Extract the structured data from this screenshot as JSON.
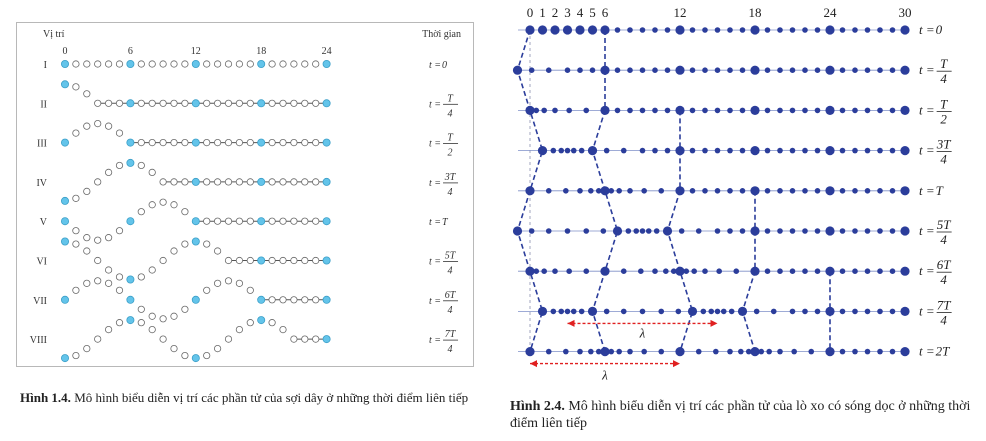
{
  "figure1": {
    "header_left": "Vị trí",
    "header_right": "Thời gian",
    "positions": [
      "0",
      "6",
      "12",
      "18",
      "24"
    ],
    "colors": {
      "particle_highlight": "#63c4ea",
      "particle_open": "#ffffff",
      "line": "#555555"
    },
    "rows": [
      {
        "roman": "I",
        "time": {
          "prefix": "t = ",
          "plain": "0"
        }
      },
      {
        "roman": "II",
        "time": {
          "prefix": "t = ",
          "num": "T",
          "den": "4"
        }
      },
      {
        "roman": "III",
        "time": {
          "prefix": "t = ",
          "num": "T",
          "den": "2"
        }
      },
      {
        "roman": "IV",
        "time": {
          "prefix": "t = ",
          "num": "3T",
          "den": "4"
        }
      },
      {
        "roman": "V",
        "time": {
          "prefix": "t = ",
          "plain": "T"
        }
      },
      {
        "roman": "VI",
        "time": {
          "prefix": "t = ",
          "num": "5T",
          "den": "4"
        }
      },
      {
        "roman": "VII",
        "time": {
          "prefix": "t = ",
          "num": "6T",
          "den": "4"
        }
      },
      {
        "roman": "VIII",
        "time": {
          "prefix": "t = ",
          "num": "7T",
          "den": "4"
        }
      }
    ],
    "caption_bold": "Hình 1.4.",
    "caption_text": " Mô hình biểu diễn vị trí các phần tử của sợi dây ở những thời điểm liên tiếp"
  },
  "figure2": {
    "top_labels": [
      "0",
      "1",
      "2",
      "3",
      "4",
      "5",
      "6",
      "12",
      "18",
      "24",
      "30"
    ],
    "colors": {
      "particle": "#2b3d9b",
      "line": "#7f8fc8",
      "wave": "#2b3d9b",
      "lambda_arrow": "#e02020"
    },
    "rows": [
      {
        "time": {
          "prefix": "t = ",
          "plain": "0"
        }
      },
      {
        "time": {
          "prefix": "t = ",
          "num": "T",
          "den": "4"
        }
      },
      {
        "time": {
          "prefix": "t = ",
          "num": "T",
          "den": "2"
        }
      },
      {
        "time": {
          "prefix": "t = ",
          "num": "3T",
          "den": "4"
        }
      },
      {
        "time": {
          "prefix": "t = ",
          "plain": "T"
        }
      },
      {
        "time": {
          "prefix": "t = ",
          "num": "5T",
          "den": "4"
        }
      },
      {
        "time": {
          "prefix": "t = ",
          "num": "6T",
          "den": "4"
        }
      },
      {
        "time": {
          "prefix": "t = ",
          "num": "7T",
          "den": "4"
        }
      },
      {
        "time": {
          "prefix": "t = ",
          "plain": "2T"
        }
      }
    ],
    "lambda_label": "λ",
    "caption_bold": "Hình 2.4.",
    "caption_text": " Mô hình biểu diễn vị trí các phần tử của lò xo có sóng dọc ở những thời điểm liên tiếp"
  }
}
